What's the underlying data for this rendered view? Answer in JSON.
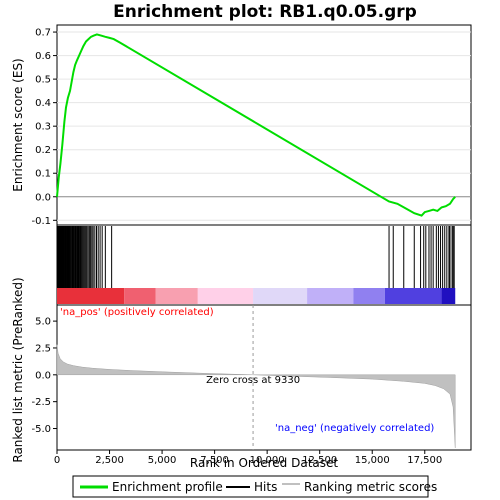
{
  "chart_data": {
    "title": "Enrichment plot: RB1.q0.05.grp",
    "type": "line",
    "x_axis": {
      "label": "Rank in Ordered Dataset",
      "range": [
        0,
        19700
      ],
      "ticks": [
        0,
        2500,
        5000,
        7500,
        10000,
        12500,
        15000,
        17500
      ],
      "tick_labels": [
        "0",
        "2,500",
        "5,000",
        "7,500",
        "10,000",
        "12,500",
        "15,000",
        "17,500"
      ]
    },
    "es_panel": {
      "ylabel": "Enrichment score (ES)",
      "ylim": [
        -0.12,
        0.73
      ],
      "ticks": [
        -0.1,
        0.0,
        0.1,
        0.2,
        0.3,
        0.4,
        0.5,
        0.6,
        0.7
      ],
      "tick_labels": [
        "-0.1",
        "0.0",
        "0.1",
        "0.2",
        "0.3",
        "0.4",
        "0.5",
        "0.6",
        "0.7"
      ],
      "grid": true,
      "series": [
        {
          "name": "Enrichment profile",
          "color": "#00dd00",
          "x": [
            0,
            80,
            160,
            250,
            350,
            430,
            520,
            620,
            700,
            780,
            860,
            950,
            1050,
            1150,
            1250,
            1380,
            1500,
            1620,
            1750,
            1900,
            2100,
            2300,
            2500,
            2700,
            3000,
            15800,
            16200,
            16600,
            17000,
            17350,
            17500,
            17700,
            17900,
            18100,
            18300,
            18500,
            18700,
            18850,
            18950
          ],
          "y": [
            0.0,
            0.08,
            0.14,
            0.22,
            0.32,
            0.38,
            0.42,
            0.45,
            0.49,
            0.53,
            0.56,
            0.58,
            0.6,
            0.62,
            0.64,
            0.66,
            0.67,
            0.68,
            0.685,
            0.69,
            0.685,
            0.68,
            0.675,
            0.67,
            0.655,
            -0.02,
            -0.03,
            -0.05,
            -0.07,
            -0.08,
            -0.065,
            -0.06,
            -0.055,
            -0.06,
            -0.045,
            -0.04,
            -0.03,
            -0.01,
            0.0
          ]
        }
      ]
    },
    "hits_panel": {
      "series_name": "Hits",
      "positions": [
        10,
        30,
        55,
        80,
        100,
        125,
        150,
        175,
        200,
        225,
        250,
        275,
        300,
        330,
        360,
        390,
        420,
        450,
        480,
        510,
        540,
        570,
        600,
        640,
        680,
        720,
        760,
        800,
        840,
        880,
        920,
        960,
        1000,
        1040,
        1080,
        1120,
        1170,
        1220,
        1270,
        1320,
        1370,
        1420,
        1480,
        1540,
        1600,
        1660,
        1720,
        1800,
        1880,
        1960,
        2050,
        2150,
        2300,
        2600,
        15800,
        16000,
        16500,
        17000,
        17300,
        17450,
        17550,
        17700,
        17800,
        17900,
        18050,
        18150,
        18250,
        18350,
        18450,
        18550,
        18650,
        18700,
        18800,
        18850,
        18900
      ]
    },
    "metric_panel": {
      "ylabel": "Ranked list metric (PreRanked)",
      "ylim": [
        -7.0,
        6.5
      ],
      "ticks": [
        -5.0,
        -2.5,
        0.0,
        2.5,
        5.0
      ],
      "tick_labels": [
        "-5.0",
        "-2.5",
        "0.0",
        "2.5",
        "5.0"
      ],
      "series_name": "Ranking metric scores",
      "fill_color": "#c0c0c0",
      "x": [
        0,
        50,
        150,
        300,
        500,
        800,
        1200,
        1700,
        2500,
        3500,
        5000,
        7000,
        9330,
        11000,
        13000,
        15000,
        16500,
        17500,
        18000,
        18400,
        18700,
        18850,
        18950
      ],
      "y": [
        2.8,
        2.0,
        1.5,
        1.2,
        1.0,
        0.85,
        0.72,
        0.62,
        0.5,
        0.4,
        0.28,
        0.14,
        0.0,
        -0.12,
        -0.25,
        -0.4,
        -0.6,
        -0.8,
        -1.0,
        -1.3,
        -1.8,
        -3.0,
        -6.8
      ],
      "annotations": {
        "zero_cross": "Zero cross at 9330",
        "positive": "'na_pos' (positively correlated)",
        "negative": "'na_neg' (negatively correlated)"
      },
      "zero_cross_rank": 9330
    },
    "color_bar": {
      "segments": [
        {
          "end": 3200,
          "color": "#e8303a"
        },
        {
          "end": 4700,
          "color": "#f06070"
        },
        {
          "end": 6700,
          "color": "#f8a0b0"
        },
        {
          "end": 9330,
          "color": "#ffd0e8"
        },
        {
          "end": 11900,
          "color": "#e0d8f8"
        },
        {
          "end": 14100,
          "color": "#c0b0f8"
        },
        {
          "end": 15600,
          "color": "#9080f0"
        },
        {
          "end": 18300,
          "color": "#5040e0"
        },
        {
          "end": 18950,
          "color": "#2010c0"
        }
      ]
    },
    "legend": {
      "items": [
        {
          "label": "Enrichment profile",
          "color": "#00dd00",
          "style": "line"
        },
        {
          "label": "Hits",
          "color": "#000000",
          "style": "line"
        },
        {
          "label": "Ranking metric scores",
          "color": "#c0c0c0",
          "style": "line"
        }
      ]
    }
  }
}
